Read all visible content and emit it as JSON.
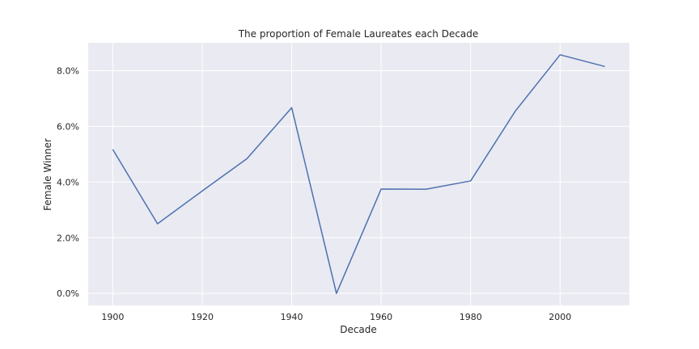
{
  "chart_data": {
    "type": "line",
    "title": "The proportion of Female Laureates each Decade",
    "xlabel": "Decade",
    "ylabel": "Female Winner",
    "x": [
      1900,
      1910,
      1920,
      1930,
      1940,
      1950,
      1960,
      1970,
      1980,
      1990,
      2000,
      2010
    ],
    "series": [
      {
        "values": [
          0.0517,
          0.025,
          0.0368,
          0.0484,
          0.0667,
          0.0,
          0.0375,
          0.0374,
          0.0404,
          0.0655,
          0.0857,
          0.0815
        ]
      }
    ],
    "xticks": [
      1900,
      1920,
      1940,
      1960,
      1980,
      2000
    ],
    "xtick_labels": [
      "1900",
      "1920",
      "1940",
      "1960",
      "1980",
      "2000"
    ],
    "yticks": [
      0,
      0.02,
      0.04,
      0.06,
      0.08
    ],
    "ytick_labels": [
      "0.0%",
      "2.0%",
      "4.0%",
      "6.0%",
      "8.0%"
    ],
    "xlim": [
      1894.5,
      2015.5
    ],
    "ylim": [
      -0.0043,
      0.09
    ],
    "grid": true,
    "colors": {
      "background": "#eaeaf2",
      "line": "#4c72b0",
      "grid": "#ffffff"
    }
  }
}
